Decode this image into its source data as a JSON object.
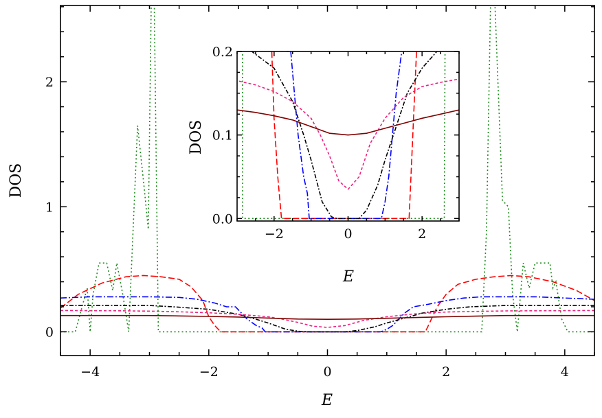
{
  "chart_data": [
    {
      "type": "line",
      "panel": "main",
      "xlabel": "E",
      "ylabel": "DOS",
      "xlim": [
        -4.5,
        4.5
      ],
      "ylim": [
        -0.19,
        2.61
      ],
      "xticks": [
        -4,
        -2,
        0,
        2,
        4
      ],
      "xtick_labels": [
        "−4",
        "−2",
        "0",
        "2",
        "4"
      ],
      "yticks": [
        0,
        1,
        2
      ],
      "ytick_labels": [
        "0",
        "1",
        "2"
      ],
      "grid": false,
      "series": [
        {
          "color": "#1a8a1a",
          "style": "dotted",
          "x": [
            -4.5,
            -4.25,
            -4.05,
            -4.0,
            -3.95,
            -3.85,
            -3.72,
            -3.62,
            -3.55,
            -3.45,
            -3.35,
            -3.2,
            -3.1,
            -3.02,
            -2.97,
            -2.92,
            -2.85,
            -2.8,
            -1,
            0,
            1,
            2.6,
            2.68,
            2.75,
            2.82,
            2.95,
            3.05,
            3.12,
            3.2,
            3.3,
            3.4,
            3.5,
            3.6,
            3.75,
            3.8,
            3.85,
            3.95,
            4.05,
            4.5
          ],
          "y": [
            0,
            0,
            0.35,
            0,
            0.3,
            0.55,
            0.55,
            0.33,
            0.55,
            0.3,
            0,
            1.65,
            1.2,
            0.82,
            2.65,
            2.65,
            0,
            0,
            0,
            0,
            0,
            0,
            0.8,
            2.65,
            2.65,
            1.05,
            1.0,
            0.3,
            0,
            0.55,
            0.35,
            0.55,
            0.55,
            0.55,
            0.35,
            0.4,
            0.1,
            0,
            0
          ]
        },
        {
          "color": "#ff0000",
          "style": "dashed",
          "x": [
            -4.5,
            -4.2,
            -3.8,
            -3.4,
            -3.1,
            -2.8,
            -2.5,
            -2.3,
            -2.1,
            -2.0,
            -1.9,
            -1.8,
            0,
            1.65,
            1.75,
            1.85,
            2.0,
            2.2,
            2.5,
            2.8,
            3.1,
            3.4,
            3.8,
            4.2,
            4.5
          ],
          "y": [
            0.19,
            0.3,
            0.39,
            0.44,
            0.45,
            0.44,
            0.42,
            0.36,
            0.25,
            0.12,
            0.05,
            0,
            0,
            0,
            0.1,
            0.2,
            0.3,
            0.38,
            0.42,
            0.44,
            0.45,
            0.44,
            0.4,
            0.33,
            0.25
          ]
        },
        {
          "color": "#0000ff",
          "style": "dashdot",
          "x": [
            -4.5,
            -4,
            -3.5,
            -3,
            -2.5,
            -2.2,
            -1.9,
            -1.7,
            -1.55,
            -1.45,
            -1.35,
            -1.2,
            -1.1,
            -1.05,
            0,
            0.9,
            1.0,
            1.1,
            1.2,
            1.3,
            1.45,
            1.7,
            2.0,
            2.3,
            2.6,
            3,
            3.5,
            4,
            4.5
          ],
          "y": [
            0.27,
            0.28,
            0.28,
            0.28,
            0.275,
            0.26,
            0.23,
            0.2,
            0.2,
            0.15,
            0.1,
            0.05,
            0.03,
            0,
            0,
            0,
            0.02,
            0.05,
            0.1,
            0.15,
            0.2,
            0.22,
            0.25,
            0.27,
            0.28,
            0.28,
            0.28,
            0.27,
            0.26
          ]
        },
        {
          "color": "#000000",
          "style": "dashdotdot",
          "x": [
            -4.5,
            -3.5,
            -3,
            -2.6,
            -2,
            -1.5,
            -1.2,
            -1.0,
            -0.7,
            -0.45,
            -0.3,
            0.3,
            0.5,
            0.8,
            1.0,
            1.3,
            1.6,
            2.0,
            2.4,
            3,
            3.5,
            4.5
          ],
          "y": [
            0.21,
            0.21,
            0.21,
            0.2,
            0.18,
            0.14,
            0.1,
            0.07,
            0.02,
            0.002,
            0,
            0,
            0.01,
            0.04,
            0.07,
            0.11,
            0.15,
            0.18,
            0.2,
            0.21,
            0.21,
            0.21
          ]
        },
        {
          "color": "#f0207f",
          "style": "shortdash",
          "x": [
            -4.5,
            -3.5,
            -3,
            -2.5,
            -2,
            -1.5,
            -1,
            -0.75,
            -0.5,
            -0.25,
            0,
            0.3,
            0.6,
            1,
            1.5,
            2,
            2.5,
            3,
            3.5,
            4.5
          ],
          "y": [
            0.17,
            0.168,
            0.165,
            0.16,
            0.152,
            0.14,
            0.12,
            0.1,
            0.075,
            0.045,
            0.035,
            0.05,
            0.09,
            0.12,
            0.145,
            0.158,
            0.163,
            0.167,
            0.168,
            0.17
          ]
        },
        {
          "color": "#800000",
          "style": "solid",
          "x": [
            -4.5,
            -3.5,
            -3,
            -2.5,
            -2,
            -1.5,
            -1,
            -0.5,
            0,
            0.5,
            1,
            1.5,
            2,
            2.5,
            3,
            3.5,
            4.5
          ],
          "y": [
            0.13,
            0.13,
            0.13,
            0.127,
            0.123,
            0.118,
            0.11,
            0.102,
            0.1,
            0.102,
            0.108,
            0.114,
            0.12,
            0.125,
            0.13,
            0.13,
            0.13
          ]
        }
      ]
    },
    {
      "type": "line",
      "panel": "inset",
      "xlabel": "E",
      "ylabel": "DOS",
      "xlim": [
        -3,
        3
      ],
      "ylim": [
        -0.003,
        0.2
      ],
      "xticks": [
        -2,
        0,
        2
      ],
      "xtick_labels": [
        "−2",
        "0",
        "2"
      ],
      "yticks": [
        0,
        0.1,
        0.2
      ],
      "ytick_labels": [
        "0.0",
        "0.1",
        "0.2"
      ],
      "grid": false,
      "series_same_as": "main"
    }
  ]
}
